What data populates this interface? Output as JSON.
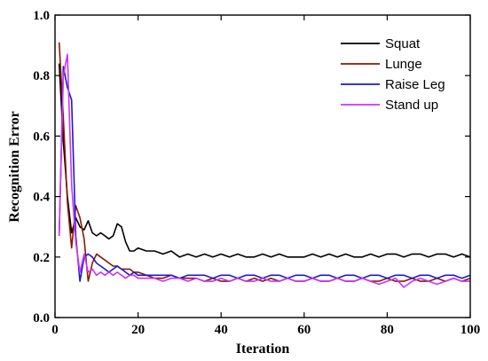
{
  "chart_data": {
    "type": "line",
    "title": "",
    "xlabel": "Iteration",
    "ylabel": "Recognition Error",
    "xlim": [
      0,
      100
    ],
    "ylim": [
      0.0,
      1.0
    ],
    "xticks": [
      0,
      20,
      40,
      60,
      80,
      100
    ],
    "yticks": [
      0.0,
      0.2,
      0.4,
      0.6,
      0.8,
      1.0
    ],
    "xtick_labels": [
      "0",
      "20",
      "40",
      "60",
      "80",
      "100"
    ],
    "ytick_labels": [
      "0.0",
      "0.2",
      "0.4",
      "0.6",
      "0.8",
      "1.0"
    ],
    "grid": false,
    "legend_position": "top-right",
    "series": [
      {
        "name": "Squat",
        "color": "#000000",
        "x": [
          1,
          2,
          3,
          4,
          5,
          6,
          7,
          8,
          9,
          10,
          11,
          12,
          13,
          14,
          15,
          16,
          17,
          18,
          19,
          20,
          22,
          24,
          26,
          28,
          30,
          32,
          34,
          36,
          38,
          40,
          42,
          44,
          46,
          48,
          50,
          52,
          54,
          56,
          58,
          60,
          62,
          64,
          66,
          68,
          70,
          72,
          74,
          76,
          78,
          80,
          82,
          84,
          86,
          88,
          90,
          92,
          94,
          96,
          98,
          100
        ],
        "values": [
          0.84,
          0.58,
          0.4,
          0.28,
          0.33,
          0.3,
          0.29,
          0.32,
          0.28,
          0.27,
          0.28,
          0.27,
          0.26,
          0.27,
          0.31,
          0.3,
          0.25,
          0.22,
          0.22,
          0.23,
          0.22,
          0.22,
          0.21,
          0.22,
          0.2,
          0.21,
          0.2,
          0.21,
          0.2,
          0.21,
          0.2,
          0.21,
          0.2,
          0.2,
          0.21,
          0.2,
          0.21,
          0.2,
          0.2,
          0.2,
          0.21,
          0.2,
          0.21,
          0.2,
          0.21,
          0.2,
          0.2,
          0.21,
          0.2,
          0.21,
          0.21,
          0.2,
          0.21,
          0.21,
          0.2,
          0.21,
          0.21,
          0.2,
          0.21,
          0.2
        ]
      },
      {
        "name": "Lunge",
        "color": "#8b1a00",
        "x": [
          1,
          2,
          3,
          4,
          5,
          6,
          7,
          8,
          9,
          10,
          11,
          12,
          13,
          14,
          15,
          16,
          17,
          18,
          19,
          20,
          22,
          24,
          26,
          28,
          30,
          32,
          34,
          36,
          38,
          40,
          42,
          44,
          46,
          48,
          50,
          52,
          54,
          56,
          58,
          60,
          62,
          64,
          66,
          68,
          70,
          72,
          74,
          76,
          78,
          80,
          82,
          84,
          86,
          88,
          90,
          92,
          94,
          96,
          98,
          100
        ],
        "values": [
          0.91,
          0.66,
          0.38,
          0.23,
          0.37,
          0.33,
          0.26,
          0.12,
          0.18,
          0.21,
          0.2,
          0.19,
          0.18,
          0.17,
          0.17,
          0.16,
          0.16,
          0.16,
          0.15,
          0.15,
          0.14,
          0.13,
          0.13,
          0.14,
          0.13,
          0.13,
          0.13,
          0.12,
          0.13,
          0.12,
          0.12,
          0.13,
          0.12,
          0.13,
          0.12,
          0.13,
          0.12,
          0.13,
          0.12,
          0.12,
          0.13,
          0.12,
          0.12,
          0.13,
          0.12,
          0.12,
          0.13,
          0.12,
          0.12,
          0.13,
          0.12,
          0.12,
          0.13,
          0.12,
          0.12,
          0.13,
          0.12,
          0.13,
          0.12,
          0.13
        ]
      },
      {
        "name": "Raise Leg",
        "color": "#1a1acd",
        "x": [
          1,
          2,
          3,
          4,
          5,
          6,
          7,
          8,
          9,
          10,
          11,
          12,
          13,
          14,
          15,
          16,
          17,
          18,
          19,
          20,
          22,
          24,
          26,
          28,
          30,
          32,
          34,
          36,
          38,
          40,
          42,
          44,
          46,
          48,
          50,
          52,
          54,
          56,
          58,
          60,
          62,
          64,
          66,
          68,
          70,
          72,
          74,
          76,
          78,
          80,
          82,
          84,
          86,
          88,
          90,
          92,
          94,
          96,
          98,
          100
        ],
        "values": [
          0.27,
          0.83,
          0.76,
          0.72,
          0.27,
          0.12,
          0.2,
          0.21,
          0.2,
          0.18,
          0.17,
          0.16,
          0.15,
          0.16,
          0.17,
          0.16,
          0.15,
          0.14,
          0.15,
          0.14,
          0.14,
          0.14,
          0.14,
          0.14,
          0.13,
          0.14,
          0.14,
          0.14,
          0.13,
          0.14,
          0.14,
          0.13,
          0.14,
          0.14,
          0.13,
          0.14,
          0.14,
          0.13,
          0.14,
          0.14,
          0.13,
          0.14,
          0.14,
          0.13,
          0.14,
          0.14,
          0.13,
          0.14,
          0.14,
          0.13,
          0.14,
          0.14,
          0.13,
          0.14,
          0.14,
          0.13,
          0.14,
          0.14,
          0.13,
          0.14
        ]
      },
      {
        "name": "Stand up",
        "color": "#cc33ff",
        "x": [
          1,
          2,
          3,
          4,
          5,
          6,
          7,
          8,
          9,
          10,
          11,
          12,
          13,
          14,
          15,
          16,
          17,
          18,
          19,
          20,
          22,
          24,
          26,
          28,
          30,
          32,
          34,
          36,
          38,
          40,
          42,
          44,
          46,
          48,
          50,
          52,
          54,
          56,
          58,
          60,
          62,
          64,
          66,
          68,
          70,
          72,
          74,
          76,
          78,
          80,
          82,
          84,
          86,
          88,
          90,
          92,
          94,
          96,
          98,
          100
        ],
        "values": [
          0.27,
          0.8,
          0.87,
          0.44,
          0.25,
          0.15,
          0.21,
          0.15,
          0.16,
          0.14,
          0.15,
          0.14,
          0.15,
          0.14,
          0.15,
          0.14,
          0.13,
          0.14,
          0.14,
          0.13,
          0.13,
          0.13,
          0.12,
          0.13,
          0.13,
          0.12,
          0.13,
          0.12,
          0.12,
          0.13,
          0.12,
          0.13,
          0.12,
          0.12,
          0.13,
          0.12,
          0.12,
          0.13,
          0.12,
          0.12,
          0.13,
          0.12,
          0.12,
          0.13,
          0.12,
          0.12,
          0.13,
          0.12,
          0.11,
          0.12,
          0.13,
          0.1,
          0.12,
          0.13,
          0.12,
          0.11,
          0.12,
          0.13,
          0.12,
          0.12
        ]
      }
    ]
  }
}
